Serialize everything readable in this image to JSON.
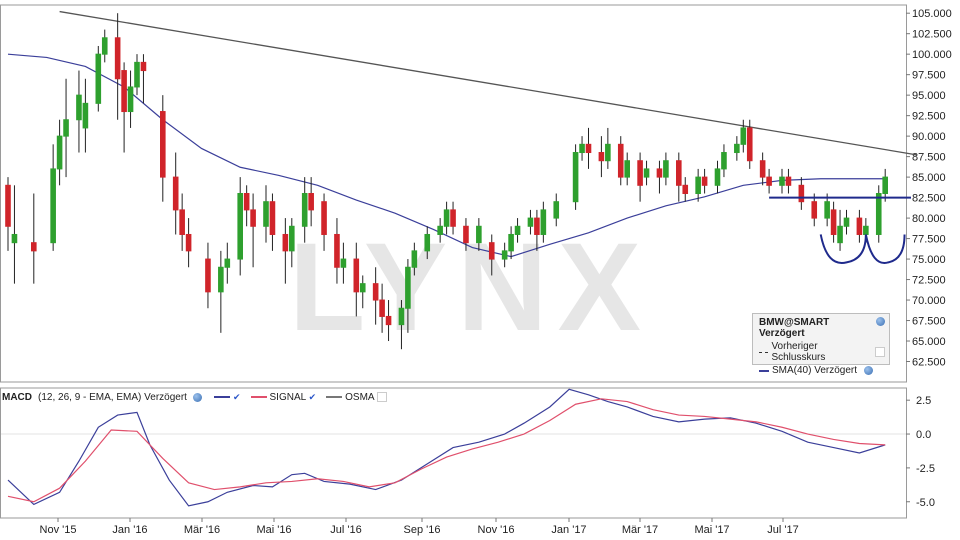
{
  "watermark": "LYNX",
  "colors": {
    "up": "#2ea02e",
    "down": "#d0242a",
    "sma": "#3b3f9a",
    "signal": "#e0506c",
    "macd": "#3b3f9a",
    "trend": "#555555",
    "support": "#1f2a8c"
  },
  "legend_price": {
    "title": "BMW@SMART Verzögert",
    "row1": "Vorheriger Schlusskurs",
    "row2": "SMA(40) Verzögert"
  },
  "legend_macd": {
    "title": "MACD",
    "params": "(12, 26, 9 - EMA, EMA) Verzögert",
    "signal": "SIGNAL",
    "osma": "OSMA"
  },
  "chart_data": [
    {
      "type": "candlestick",
      "title": "BMW@SMART Verzögert",
      "x_ticks": [
        "Nov '15",
        "Jan '16",
        "Mär '16",
        "Mai '16",
        "Jul '16",
        "Sep '16",
        "Nov '16",
        "Jan '17",
        "Mär '17",
        "Mai '17",
        "Jul '17"
      ],
      "y_ticks": [
        105.0,
        102.5,
        100.0,
        97.5,
        95.0,
        92.5,
        90.0,
        87.5,
        85.0,
        82.5,
        80.0,
        77.5,
        75.0,
        72.5,
        70.0,
        67.5,
        65.0,
        62.5
      ],
      "ylim": [
        60.0,
        106.0
      ],
      "candles": [
        [
          1,
          77,
          78,
          72,
          84
        ],
        [
          0,
          84,
          79,
          76,
          85
        ],
        [
          4,
          77,
          76,
          72,
          83
        ],
        [
          7,
          77,
          86,
          76,
          89
        ],
        [
          8,
          86,
          90,
          84,
          92
        ],
        [
          9,
          90,
          92,
          85,
          97
        ],
        [
          11,
          92,
          95,
          88,
          98
        ],
        [
          12,
          91,
          94,
          88,
          97
        ],
        [
          14,
          94,
          100,
          93,
          101
        ],
        [
          15,
          100,
          102,
          99,
          103
        ],
        [
          17,
          102,
          97,
          92,
          105
        ],
        [
          18,
          98,
          93,
          88,
          99
        ],
        [
          19,
          93,
          96,
          91,
          98
        ],
        [
          20,
          96,
          99,
          95,
          100
        ],
        [
          21,
          99,
          98,
          94,
          100
        ],
        [
          24,
          93,
          85,
          82,
          95
        ],
        [
          26,
          85,
          81,
          78,
          88
        ],
        [
          27,
          81,
          78,
          76,
          83
        ],
        [
          28,
          78,
          76,
          74,
          80
        ],
        [
          31,
          75,
          71,
          69,
          77
        ],
        [
          33,
          71,
          74,
          66,
          76
        ],
        [
          34,
          74,
          75,
          72,
          77
        ],
        [
          36,
          75,
          83,
          73,
          85
        ],
        [
          37,
          83,
          81,
          79,
          84
        ],
        [
          38,
          81,
          79,
          74,
          83
        ],
        [
          40,
          79,
          82,
          77,
          84
        ],
        [
          41,
          82,
          78,
          76,
          83
        ],
        [
          43,
          78,
          76,
          72,
          80
        ],
        [
          44,
          76,
          79,
          74,
          80
        ],
        [
          46,
          79,
          83,
          77,
          85
        ],
        [
          47,
          83,
          81,
          79,
          85
        ],
        [
          49,
          82,
          78,
          76,
          83
        ],
        [
          51,
          78,
          74,
          72,
          80
        ],
        [
          52,
          74,
          75,
          72,
          77
        ],
        [
          54,
          75,
          71,
          68,
          77
        ],
        [
          55,
          71,
          72,
          69,
          73
        ],
        [
          57,
          72,
          70,
          67,
          74
        ],
        [
          58,
          70,
          68,
          66,
          72
        ],
        [
          59,
          68,
          67,
          65,
          70
        ],
        [
          61,
          67,
          69,
          64,
          70
        ],
        [
          62,
          69,
          74,
          66,
          75
        ],
        [
          63,
          74,
          76,
          73,
          77
        ],
        [
          65,
          76,
          78,
          75,
          79
        ],
        [
          67,
          78,
          79,
          77,
          80
        ],
        [
          68,
          79,
          81,
          78,
          82
        ],
        [
          69,
          81,
          79,
          78,
          82
        ],
        [
          71,
          79,
          77,
          76,
          80
        ],
        [
          73,
          77,
          79,
          76,
          80
        ],
        [
          75,
          77,
          75,
          73,
          78
        ],
        [
          77,
          75,
          76,
          74,
          77
        ],
        [
          78,
          76,
          78,
          75,
          79
        ],
        [
          79,
          78,
          79,
          77,
          80
        ],
        [
          81,
          79,
          80,
          78,
          81
        ],
        [
          82,
          80,
          78,
          76,
          81
        ],
        [
          83,
          78,
          81,
          77,
          82
        ],
        [
          85,
          80,
          82,
          79,
          83
        ],
        [
          88,
          82,
          88,
          81,
          89
        ],
        [
          89,
          88,
          89,
          87,
          90
        ],
        [
          90,
          89,
          88,
          86,
          91
        ],
        [
          92,
          88,
          87,
          85,
          90
        ],
        [
          93,
          87,
          89,
          86,
          91
        ],
        [
          95,
          89,
          85,
          84,
          90
        ],
        [
          96,
          85,
          87,
          84,
          88
        ],
        [
          98,
          87,
          84,
          82,
          88
        ],
        [
          99,
          85,
          86,
          84,
          87
        ],
        [
          101,
          86,
          85,
          83,
          87
        ],
        [
          102,
          85,
          87,
          84,
          88
        ],
        [
          104,
          87,
          84,
          82,
          88
        ],
        [
          105,
          84,
          83,
          82,
          85
        ],
        [
          107,
          83,
          85,
          82,
          86
        ],
        [
          108,
          85,
          84,
          83,
          86
        ],
        [
          110,
          84,
          86,
          83,
          87
        ],
        [
          111,
          86,
          88,
          85,
          89
        ],
        [
          113,
          88,
          89,
          87,
          90
        ],
        [
          114,
          89,
          91,
          88,
          92
        ],
        [
          115,
          91,
          87,
          86,
          92
        ],
        [
          117,
          87,
          85,
          84,
          88
        ],
        [
          118,
          85,
          84,
          83,
          86
        ],
        [
          120,
          84,
          85,
          83,
          86
        ],
        [
          121,
          85,
          84,
          83,
          86
        ],
        [
          123,
          84,
          82,
          81,
          85
        ],
        [
          125,
          82,
          80,
          79,
          83
        ],
        [
          127,
          80,
          82,
          79,
          83
        ],
        [
          128,
          81,
          78,
          77,
          82
        ],
        [
          129,
          77,
          79,
          76,
          81
        ],
        [
          130,
          79,
          80,
          78,
          81
        ],
        [
          132,
          80,
          78,
          77,
          81
        ],
        [
          133,
          78,
          79,
          77,
          80
        ],
        [
          135,
          78,
          83,
          77,
          84
        ],
        [
          136,
          83,
          85,
          82,
          86
        ]
      ],
      "sma40": [
        [
          0,
          100
        ],
        [
          6,
          99.6
        ],
        [
          12,
          98.5
        ],
        [
          18,
          96
        ],
        [
          24,
          92
        ],
        [
          30,
          88.5
        ],
        [
          36,
          86.2
        ],
        [
          42,
          85.2
        ],
        [
          48,
          84
        ],
        [
          54,
          82.2
        ],
        [
          60,
          80.6
        ],
        [
          66,
          78.6
        ],
        [
          72,
          76.4
        ],
        [
          78,
          75.3
        ],
        [
          84,
          76.8
        ],
        [
          90,
          78.2
        ],
        [
          96,
          80
        ],
        [
          102,
          81.5
        ],
        [
          108,
          82.6
        ],
        [
          114,
          84
        ],
        [
          120,
          84.6
        ],
        [
          126,
          84.8
        ],
        [
          132,
          84.8
        ],
        [
          136,
          84.8
        ]
      ],
      "trendline": {
        "from": [
          8,
          105.2
        ],
        "to": [
          141,
          87.7
        ]
      },
      "support_line": {
        "from": [
          118,
          82.5
        ],
        "to": [
          140,
          82.5
        ]
      }
    },
    {
      "type": "line",
      "title": "MACD",
      "y_ticks": [
        2.5,
        0.0,
        -2.5,
        -5.0
      ],
      "ylim": [
        -6.2,
        3.4
      ],
      "series": [
        {
          "name": "MACD",
          "points": [
            [
              0,
              -3.4
            ],
            [
              4,
              -5.2
            ],
            [
              8,
              -4.3
            ],
            [
              11,
              -2.0
            ],
            [
              14,
              0.5
            ],
            [
              17,
              1.4
            ],
            [
              20,
              1.6
            ],
            [
              22,
              -0.8
            ],
            [
              25,
              -3.4
            ],
            [
              28,
              -5.3
            ],
            [
              31,
              -5.0
            ],
            [
              34,
              -4.3
            ],
            [
              38,
              -3.8
            ],
            [
              41,
              -3.9
            ],
            [
              44,
              -3.0
            ],
            [
              46,
              -2.9
            ],
            [
              49,
              -3.5
            ],
            [
              53,
              -3.7
            ],
            [
              57,
              -4.1
            ],
            [
              61,
              -3.4
            ],
            [
              65,
              -2.2
            ],
            [
              69,
              -1.0
            ],
            [
              73,
              -0.6
            ],
            [
              77,
              0.0
            ],
            [
              80,
              0.8
            ],
            [
              84,
              2.0
            ],
            [
              87,
              3.3
            ],
            [
              90,
              2.9
            ],
            [
              93,
              2.4
            ],
            [
              96,
              2.0
            ],
            [
              100,
              1.3
            ],
            [
              104,
              0.9
            ],
            [
              108,
              1.1
            ],
            [
              112,
              1.2
            ],
            [
              116,
              0.8
            ],
            [
              120,
              0.2
            ],
            [
              124,
              -0.6
            ],
            [
              128,
              -1.0
            ],
            [
              132,
              -1.4
            ],
            [
              136,
              -0.8
            ]
          ]
        },
        {
          "name": "SIGNAL",
          "points": [
            [
              0,
              -4.6
            ],
            [
              4,
              -5.0
            ],
            [
              8,
              -4.0
            ],
            [
              12,
              -2.0
            ],
            [
              16,
              0.3
            ],
            [
              20,
              0.2
            ],
            [
              24,
              -1.8
            ],
            [
              28,
              -3.6
            ],
            [
              32,
              -4.1
            ],
            [
              36,
              -3.9
            ],
            [
              40,
              -3.6
            ],
            [
              44,
              -3.5
            ],
            [
              48,
              -3.3
            ],
            [
              52,
              -3.5
            ],
            [
              56,
              -3.9
            ],
            [
              60,
              -3.6
            ],
            [
              64,
              -2.6
            ],
            [
              68,
              -1.7
            ],
            [
              72,
              -1.1
            ],
            [
              76,
              -0.6
            ],
            [
              80,
              0.0
            ],
            [
              84,
              1.0
            ],
            [
              88,
              2.2
            ],
            [
              92,
              2.6
            ],
            [
              96,
              2.4
            ],
            [
              100,
              1.8
            ],
            [
              104,
              1.4
            ],
            [
              108,
              1.3
            ],
            [
              112,
              1.1
            ],
            [
              116,
              0.9
            ],
            [
              120,
              0.5
            ],
            [
              124,
              0.0
            ],
            [
              128,
              -0.4
            ],
            [
              132,
              -0.7
            ],
            [
              136,
              -0.8
            ]
          ]
        }
      ]
    }
  ]
}
